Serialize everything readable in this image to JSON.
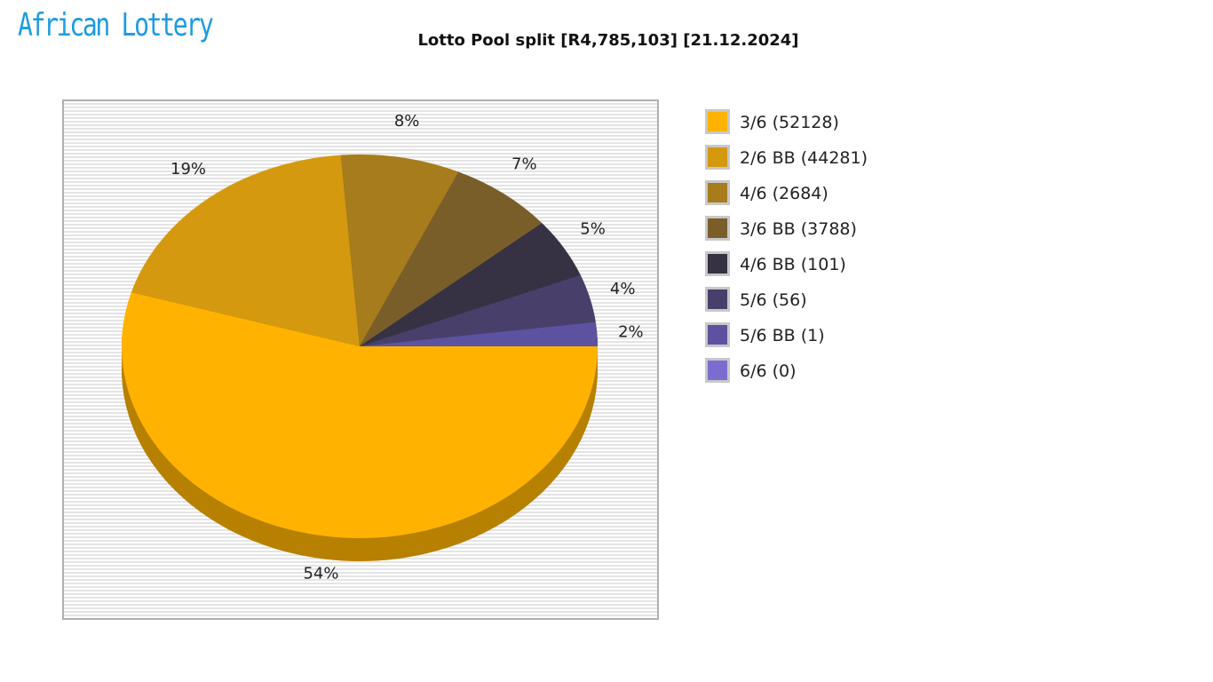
{
  "logo": "African Lottery",
  "chart_data": {
    "type": "pie",
    "title": "Lotto Pool split [R4,785,103] [21.12.2024]",
    "legend_placement": "right",
    "slices": [
      {
        "legend": "3/6 (52128)",
        "percent": 54,
        "label": "54%",
        "color": "#FFB300"
      },
      {
        "legend": "2/6 BB (44281)",
        "percent": 19,
        "label": "19%",
        "color": "#D4990F"
      },
      {
        "legend": "4/6 (2684)",
        "percent": 8,
        "label": "8%",
        "color": "#A67C1C"
      },
      {
        "legend": "3/6 BB (3788)",
        "percent": 7,
        "label": "7%",
        "color": "#7A5E2A"
      },
      {
        "legend": "4/6 BB (101)",
        "percent": 5,
        "label": "5%",
        "color": "#363244"
      },
      {
        "legend": "5/6 (56)",
        "percent": 4,
        "label": "4%",
        "color": "#48406A"
      },
      {
        "legend": "5/6 BB (1)",
        "percent": 2,
        "label": "2%",
        "color": "#5C52A0"
      },
      {
        "legend": "6/6 (0)",
        "percent": 0,
        "label": "",
        "color": "#7B6CD0"
      }
    ]
  }
}
